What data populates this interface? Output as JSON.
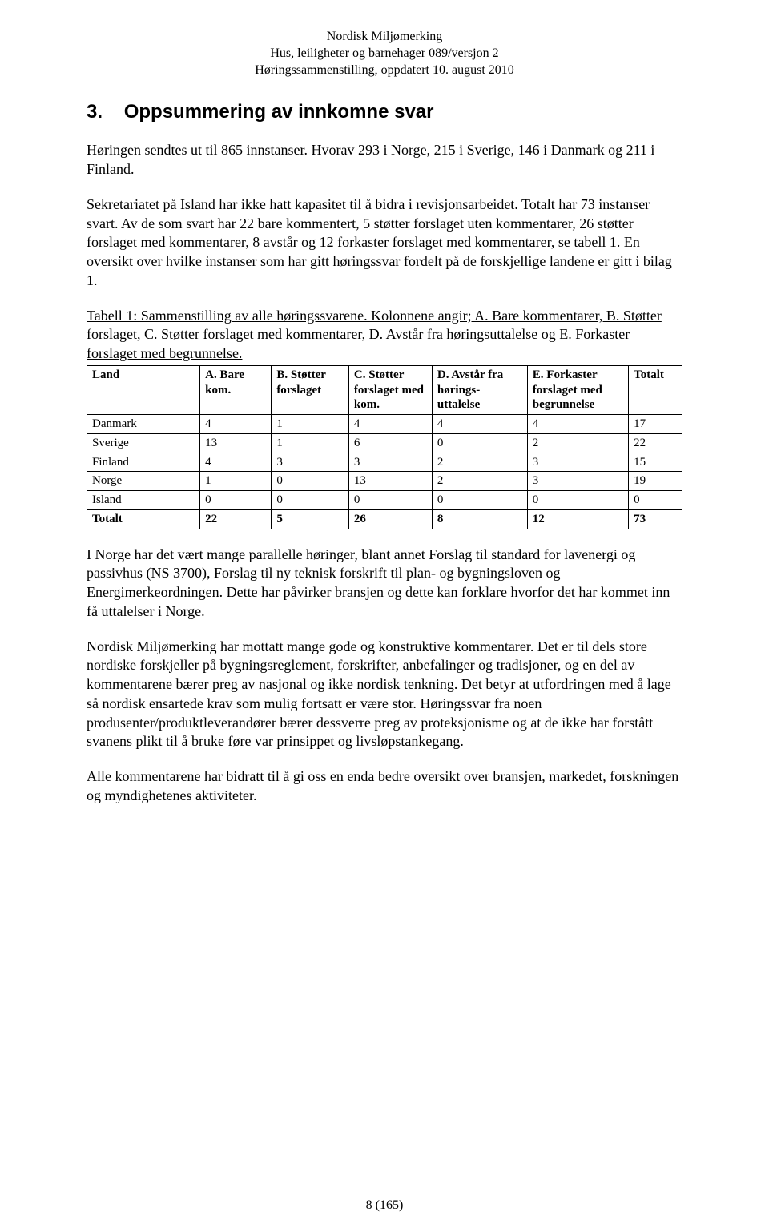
{
  "header": {
    "line1": "Nordisk Miljømerking",
    "line2": "Hus, leiligheter og barnehager 089/versjon 2",
    "line3": "Høringssammenstilling, oppdatert 10. august 2010"
  },
  "section": {
    "number": "3.",
    "title": "Oppsummering av innkomne svar"
  },
  "paragraphs": {
    "p1": "Høringen sendtes ut til 865 innstanser. Hvorav 293 i Norge, 215 i Sverige, 146 i Danmark og 211 i Finland.",
    "p2": "Sekretariatet på Island har ikke hatt kapasitet til å bidra i revisjonsarbeidet. Totalt har 73 instanser svart. Av de som svart har 22 bare kommentert, 5 støtter forslaget uten kommentarer, 26 støtter forslaget med kommentarer, 8 avstår og 12 forkaster forslaget med kommentarer, se tabell 1. En oversikt over hvilke instanser som har gitt høringssvar fordelt på de forskjellige landene er gitt i bilag 1.",
    "p3": "I Norge har det vært mange parallelle høringer, blant annet Forslag til standard for lavenergi og passivhus (NS 3700), Forslag til ny teknisk forskrift til plan- og bygningsloven og Energimerkeordningen. Dette har påvirker bransjen og dette kan forklare hvorfor det har kommet inn få uttalelser i Norge.",
    "p4": "Nordisk Miljømerking har mottatt mange gode og konstruktive kommentarer. Det er til dels store nordiske forskjeller på bygningsreglement, forskrifter, anbefalinger og tradisjoner, og en del av kommentarene bærer preg av nasjonal og ikke nordisk tenkning. Det betyr at utfordringen med å lage så nordisk ensartede krav som mulig fortsatt er være stor. Høringssvar fra noen produsenter/produktleverandører bærer dessverre preg av proteksjonisme og at de ikke har forstått svanens plikt til å bruke føre var prinsippet og livsløpstankegang.",
    "p5": "Alle kommentarene har bidratt til å gi oss en enda bedre oversikt over bransjen, markedet, forskningen og myndighetenes aktiviteter."
  },
  "tableCaption": {
    "underlined": "Tabell 1: Sammenstilling av alle høringssvarene. Kolonnene angir; A. Bare kommentarer, B. Støtter forslaget, C. Støtter forslaget med kommentarer, D. Avstår fra høringsuttalelse og E. Forkaster forslaget med begrunnelse."
  },
  "table": {
    "columns": {
      "land": "Land",
      "a": "A. Bare kom.",
      "b": "B. Støtter forslaget",
      "c": "C. Støtter forslaget med kom.",
      "d": "D. Avstår fra hørings-uttalelse",
      "e": "E. Forkaster forslaget med begrunnelse",
      "totalt": "Totalt"
    },
    "rows": [
      {
        "land": "Danmark",
        "a": "4",
        "b": "1",
        "c": "4",
        "d": "4",
        "e": "4",
        "t": "17"
      },
      {
        "land": "Sverige",
        "a": "13",
        "b": "1",
        "c": "6",
        "d": "0",
        "e": "2",
        "t": "22"
      },
      {
        "land": "Finland",
        "a": "4",
        "b": "3",
        "c": "3",
        "d": "2",
        "e": "3",
        "t": "15"
      },
      {
        "land": "Norge",
        "a": "1",
        "b": "0",
        "c": "13",
        "d": "2",
        "e": "3",
        "t": "19"
      },
      {
        "land": "Island",
        "a": "0",
        "b": "0",
        "c": "0",
        "d": "0",
        "e": "0",
        "t": "0"
      }
    ],
    "totals": {
      "land": "Totalt",
      "a": "22",
      "b": "5",
      "c": "26",
      "d": "8",
      "e": "12",
      "t": "73"
    }
  },
  "pageNumber": "8 (165)"
}
